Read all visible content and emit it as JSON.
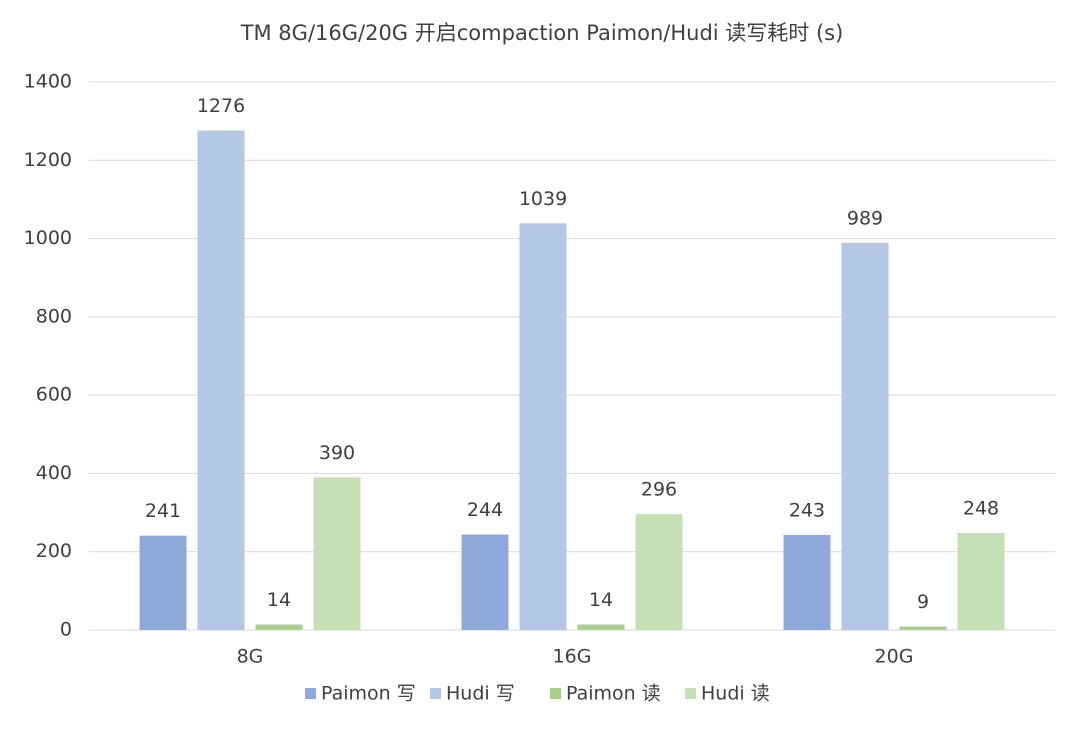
{
  "chart_data": {
    "type": "bar",
    "title": "TM 8G/16G/20G 开启compaction Paimon/Hudi 读写耗时 (s)",
    "categories": [
      "8G",
      "16G",
      "20G"
    ],
    "series": [
      {
        "name": "Paimon 写",
        "color": "#8eaadb",
        "values": [
          241,
          244,
          243
        ]
      },
      {
        "name": "Hudi 写",
        "color": "#b4c7e7",
        "values": [
          1276,
          1039,
          989
        ]
      },
      {
        "name": "Paimon 读",
        "color": "#a9d18e",
        "values": [
          14,
          14,
          9
        ]
      },
      {
        "name": "Hudi 读",
        "color": "#c5e0b4",
        "values": [
          390,
          296,
          248
        ]
      }
    ],
    "ylim": [
      0,
      1400
    ],
    "yticks": [
      0,
      200,
      400,
      600,
      800,
      1000,
      1200,
      1400
    ],
    "grid": true,
    "legend": "bottom"
  }
}
